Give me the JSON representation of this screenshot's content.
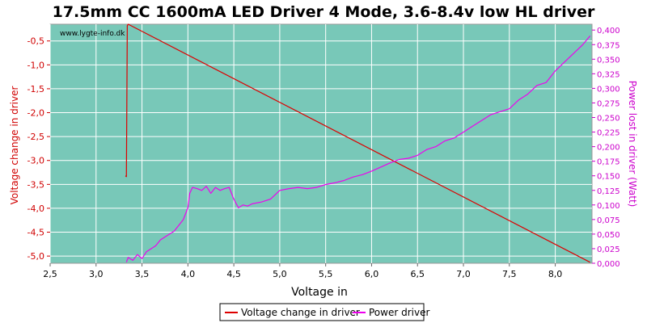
{
  "chart_data": {
    "type": "line",
    "title": "17.5mm CC 1600mA LED Driver 4 Mode, 3.6-8.4v low HL driver",
    "watermark": "www.lygte-info.dk",
    "xlabel": "Voltage in",
    "ylabel_left": "Voltage change in driver",
    "ylabel_right": "Power lost in driver (Watt)",
    "xlim": [
      2.5,
      8.4
    ],
    "ylim_left": [
      -5.15,
      -0.15
    ],
    "ylim_right": [
      0.0,
      0.41
    ],
    "x_ticks": [
      "2,5",
      "3,0",
      "3,5",
      "4,0",
      "4,5",
      "5,0",
      "5,5",
      "6,0",
      "6,5",
      "7,0",
      "7,5",
      "8,0"
    ],
    "x_tick_values": [
      2.5,
      3.0,
      3.5,
      4.0,
      4.5,
      5.0,
      5.5,
      6.0,
      6.5,
      7.0,
      7.5,
      8.0
    ],
    "left_ticks": [
      "-0,5",
      "-1,0",
      "-1,5",
      "-2,0",
      "-2,5",
      "-3,0",
      "-3,5",
      "-4,0",
      "-4,5",
      "-5,0"
    ],
    "left_tick_values": [
      -0.5,
      -1.0,
      -1.5,
      -2.0,
      -2.5,
      -3.0,
      -3.5,
      -4.0,
      -4.5,
      -5.0
    ],
    "right_ticks": [
      "0,000",
      "0,025",
      "0,050",
      "0,075",
      "0,100",
      "0,125",
      "0,150",
      "0,175",
      "0,200",
      "0,225",
      "0,250",
      "0,275",
      "0,300",
      "0,325",
      "0,350",
      "0,375",
      "0,400"
    ],
    "right_tick_values": [
      0.0,
      0.025,
      0.05,
      0.075,
      0.1,
      0.125,
      0.15,
      0.175,
      0.2,
      0.225,
      0.25,
      0.275,
      0.3,
      0.325,
      0.35,
      0.375,
      0.4
    ],
    "grid": true,
    "legend_position": "bottom-center",
    "series": [
      {
        "name": "Voltage change in driver",
        "axis": "left",
        "color": "#dd0000",
        "x": [
          3.32,
          3.33,
          3.33,
          3.34,
          3.35,
          8.38
        ],
        "y": [
          -3.32,
          -3.34,
          -3.3,
          -0.18,
          -0.15,
          -5.13
        ]
      },
      {
        "name": "Power driver",
        "axis": "right",
        "color": "#ee00ee",
        "x": [
          3.33,
          3.35,
          3.4,
          3.45,
          3.5,
          3.55,
          3.6,
          3.65,
          3.7,
          3.75,
          3.8,
          3.85,
          3.9,
          3.95,
          4.0,
          4.02,
          4.05,
          4.1,
          4.15,
          4.2,
          4.25,
          4.3,
          4.35,
          4.4,
          4.45,
          4.5,
          4.55,
          4.6,
          4.65,
          4.7,
          4.8,
          4.9,
          5.0,
          5.1,
          5.2,
          5.3,
          5.4,
          5.5,
          5.6,
          5.7,
          5.8,
          5.9,
          6.0,
          6.1,
          6.2,
          6.3,
          6.4,
          6.5,
          6.6,
          6.7,
          6.8,
          6.9,
          7.0,
          7.1,
          7.2,
          7.3,
          7.4,
          7.5,
          7.6,
          7.7,
          7.8,
          7.9,
          8.0,
          8.1,
          8.2,
          8.3,
          8.38
        ],
        "y": [
          0.002,
          0.01,
          0.005,
          0.015,
          0.008,
          0.02,
          0.025,
          0.03,
          0.04,
          0.045,
          0.05,
          0.055,
          0.065,
          0.075,
          0.095,
          0.12,
          0.13,
          0.128,
          0.125,
          0.132,
          0.12,
          0.13,
          0.125,
          0.128,
          0.13,
          0.11,
          0.095,
          0.1,
          0.098,
          0.102,
          0.105,
          0.11,
          0.125,
          0.128,
          0.13,
          0.128,
          0.13,
          0.135,
          0.138,
          0.142,
          0.148,
          0.152,
          0.158,
          0.165,
          0.172,
          0.178,
          0.18,
          0.185,
          0.195,
          0.2,
          0.21,
          0.215,
          0.225,
          0.235,
          0.245,
          0.255,
          0.26,
          0.265,
          0.28,
          0.29,
          0.305,
          0.31,
          0.33,
          0.345,
          0.36,
          0.375,
          0.39
        ]
      }
    ]
  }
}
